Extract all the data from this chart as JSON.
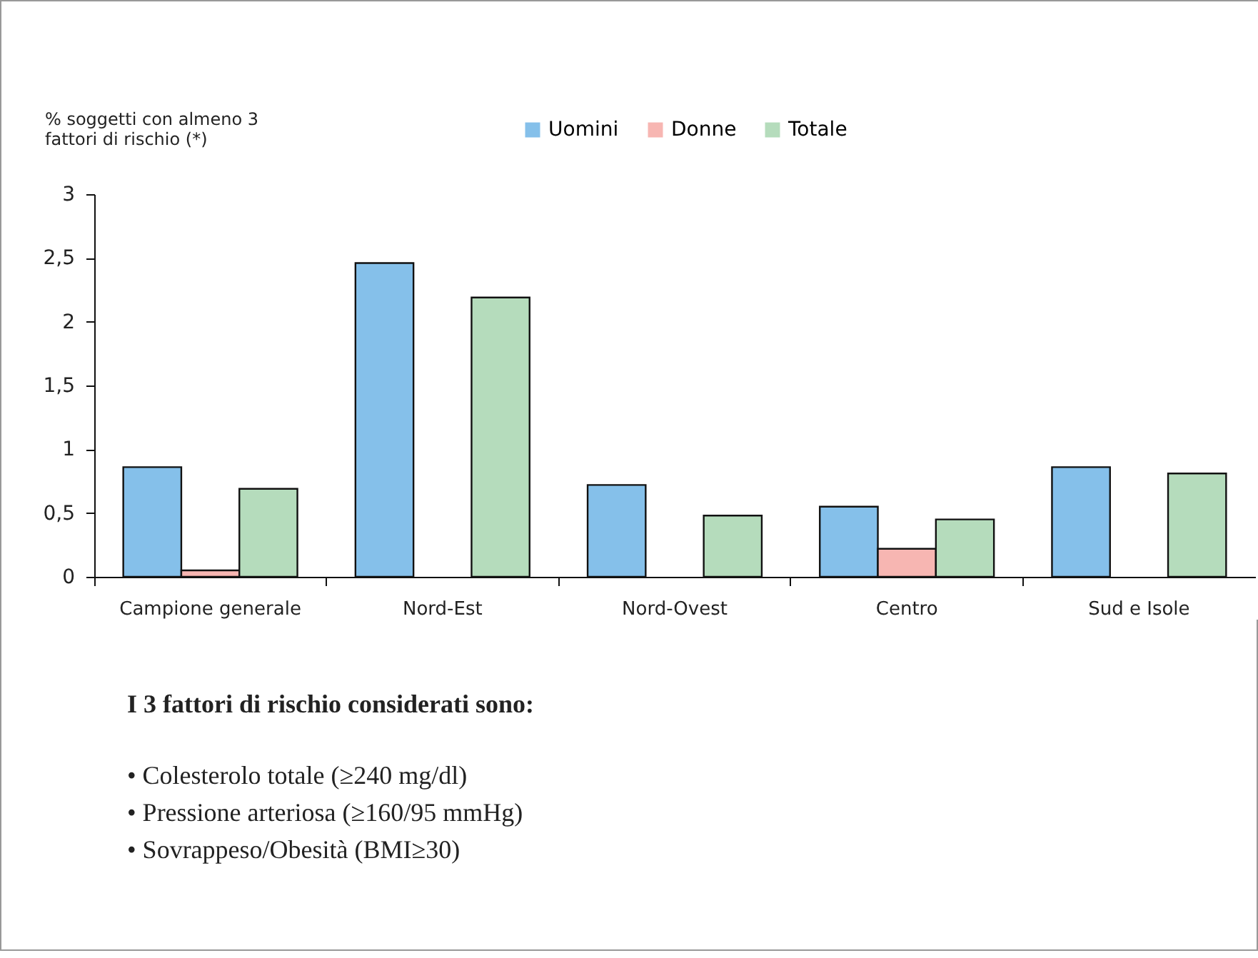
{
  "chart_data": {
    "type": "bar",
    "ylabel": "% soggetti con almeno 3 fattori di rischio (*)",
    "categories": [
      "Campione generale",
      "Nord-Est",
      "Nord-Ovest",
      "Centro",
      "Sud e Isole"
    ],
    "series": [
      {
        "name": "Uomini",
        "color": "#85c0ea",
        "values": [
          0.86,
          2.46,
          0.72,
          0.55,
          0.86
        ]
      },
      {
        "name": "Donne",
        "color": "#f7b6b2",
        "values": [
          0.05,
          null,
          null,
          0.22,
          null
        ]
      },
      {
        "name": "Totale",
        "color": "#b5dcbc",
        "values": [
          0.69,
          2.19,
          0.48,
          0.45,
          0.81
        ]
      }
    ],
    "ylim": [
      0,
      3
    ],
    "yticks": [
      0,
      {
        "value": 0.5,
        "label": "0,5"
      },
      1,
      {
        "value": 1.5,
        "label": "1,5"
      },
      2,
      {
        "value": 2.5,
        "label": "2,5"
      },
      3
    ],
    "legend": "top",
    "annotations": [
      "I 3 fattori di rischio considerati sono:",
      "• Colesterolo totale (≥240 mg/dl)",
      "• Pressione arteriosa (≥160/95 mmHg)",
      "• Sovrappeso/Obesità (BMI≥30)"
    ]
  }
}
